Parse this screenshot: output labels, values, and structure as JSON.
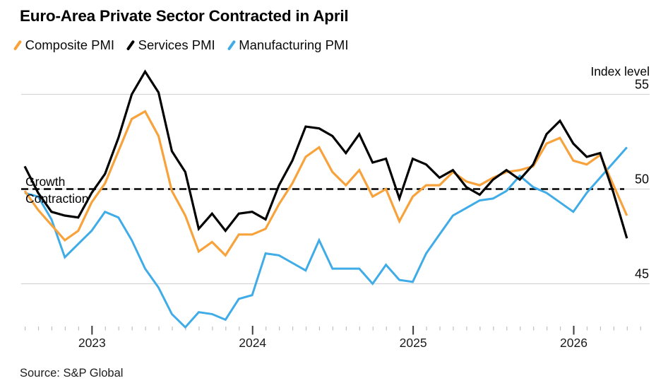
{
  "title": "Euro-Area Private Sector Contracted in April",
  "source": "Source: S&P Global",
  "axis": {
    "unit_label": "Index level",
    "growth_label": "Growth",
    "contraction_label": "Contraction",
    "y_ticks": [
      55,
      50,
      45
    ],
    "x_years": [
      "2023",
      "2024",
      "2025",
      "2026"
    ],
    "baseline_value": 50
  },
  "colors": {
    "composite": "#F7A23B",
    "services": "#000000",
    "manufacturing": "#3FACE8",
    "gridline": "#D4D4D4",
    "dashed_line": "#000000",
    "minor_tick": "#BFBFBF",
    "major_tick": "#3C3C3C",
    "text": "#1A1A1A"
  },
  "chart_data": {
    "type": "line",
    "title": "Euro-Area Private Sector Contracted in April",
    "frequency": "monthly",
    "x_start": "2022-07",
    "x_end": "2026-04",
    "ylabel": "Index level",
    "ylim": [
      42.5,
      56.5
    ],
    "baseline": 50,
    "grid": "horizontal",
    "legend_position": "top",
    "months": [
      "2022-07",
      "2022-08",
      "2022-09",
      "2022-10",
      "2022-11",
      "2022-12",
      "2023-01",
      "2023-02",
      "2023-03",
      "2023-04",
      "2023-05",
      "2023-06",
      "2023-07",
      "2023-08",
      "2023-09",
      "2023-10",
      "2023-11",
      "2023-12",
      "2024-01",
      "2024-02",
      "2024-03",
      "2024-04",
      "2024-05",
      "2024-06",
      "2024-07",
      "2024-08",
      "2024-09",
      "2024-10",
      "2024-11",
      "2024-12",
      "2025-01",
      "2025-02",
      "2025-03",
      "2025-04",
      "2025-05",
      "2025-06",
      "2025-07",
      "2025-08",
      "2025-09",
      "2025-10",
      "2025-11",
      "2025-12",
      "2026-01",
      "2026-02",
      "2026-03",
      "2026-04"
    ],
    "series": [
      {
        "name": "Composite PMI",
        "color": "#F7A23B",
        "values": [
          49.9,
          48.9,
          48.1,
          47.3,
          47.8,
          49.3,
          50.3,
          52.0,
          53.7,
          54.1,
          52.8,
          49.9,
          48.6,
          46.7,
          47.2,
          46.5,
          47.6,
          47.6,
          47.9,
          49.2,
          50.3,
          51.7,
          52.2,
          50.9,
          50.2,
          51.0,
          49.6,
          50.0,
          48.3,
          49.6,
          50.2,
          50.2,
          50.9,
          50.4,
          50.2,
          50.6,
          50.9,
          51.0,
          51.2,
          52.4,
          52.7,
          51.5,
          51.3,
          51.8,
          50.2,
          48.6
        ]
      },
      {
        "name": "Services PMI",
        "color": "#000000",
        "values": [
          51.2,
          49.8,
          48.8,
          48.6,
          48.5,
          49.8,
          50.8,
          52.7,
          55.0,
          56.2,
          55.1,
          52.0,
          50.9,
          47.9,
          48.7,
          47.8,
          48.7,
          48.8,
          48.4,
          50.2,
          51.5,
          53.3,
          53.2,
          52.8,
          51.9,
          52.9,
          51.4,
          51.6,
          49.5,
          51.6,
          51.3,
          50.6,
          51.0,
          50.1,
          49.7,
          50.5,
          51.0,
          50.5,
          51.3,
          52.9,
          53.6,
          52.4,
          51.7,
          51.9,
          49.8,
          47.4
        ]
      },
      {
        "name": "Manufacturing PMI",
        "color": "#3FACE8",
        "values": [
          49.8,
          49.6,
          48.4,
          46.4,
          47.1,
          47.8,
          48.8,
          48.5,
          47.3,
          45.8,
          44.8,
          43.4,
          42.7,
          43.5,
          43.4,
          43.1,
          44.2,
          44.4,
          46.6,
          46.5,
          46.1,
          45.7,
          47.3,
          45.8,
          45.8,
          45.8,
          45.0,
          46.0,
          45.2,
          45.1,
          46.6,
          47.6,
          48.6,
          49.0,
          49.4,
          49.5,
          49.9,
          50.7,
          50.1,
          49.8,
          49.3,
          48.8,
          49.8,
          50.6,
          51.4,
          52.2
        ]
      }
    ]
  }
}
